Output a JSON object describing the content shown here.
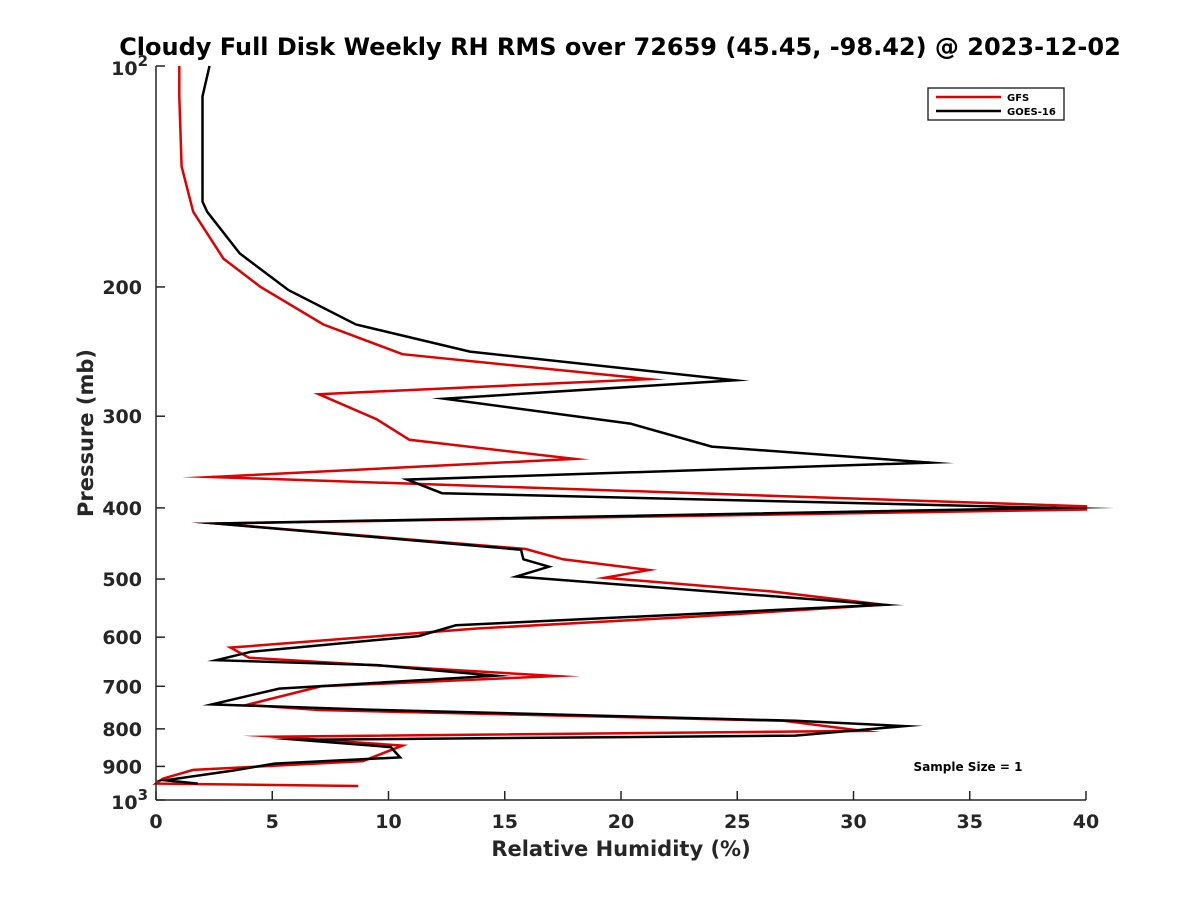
{
  "chart_data": {
    "type": "line",
    "title": "Cloudy Full Disk Weekly RH RMS over 72659 (45.45, -98.42) @ 2023-12-02",
    "xlabel": "Relative Humidity (%)",
    "ylabel": "Pressure (mb)",
    "xlim": [
      0,
      40
    ],
    "ylim": [
      100,
      1000
    ],
    "y_scale": "log",
    "y_reversed": true,
    "grid": false,
    "legend_placement": "top-right",
    "annotation": "Sample Size = 1",
    "x_ticks": [
      0,
      5,
      10,
      15,
      20,
      25,
      30,
      35,
      40
    ],
    "x_tick_labels": [
      "0",
      "5",
      "10",
      "15",
      "20",
      "25",
      "30",
      "35",
      "40"
    ],
    "y_ticks": [
      {
        "value": 100,
        "base": "10",
        "exp": "2"
      },
      {
        "value": 200,
        "label": "200"
      },
      {
        "value": 300,
        "label": "300"
      },
      {
        "value": 400,
        "label": "400"
      },
      {
        "value": 500,
        "label": "500"
      },
      {
        "value": 600,
        "label": "600"
      },
      {
        "value": 700,
        "label": "700"
      },
      {
        "value": 800,
        "label": "800"
      },
      {
        "value": 900,
        "label": "900"
      },
      {
        "value": 1000,
        "base": "10",
        "exp": "3"
      }
    ],
    "series": [
      {
        "name": "GFS",
        "color": "#e00000",
        "x": [
          1.0,
          1.0,
          1.1,
          1.6,
          2.9,
          4.5,
          7.2,
          10.6,
          21.2,
          7.0,
          9.5,
          10.9,
          18.0,
          2.4,
          40.0,
          40.0,
          2.6,
          15.9,
          17.5,
          21.2,
          19.3,
          26.5,
          31.3,
          23.0,
          13.8,
          3.2,
          4.0,
          11.0,
          17.2,
          7.1,
          3.9,
          7.0,
          27.0,
          30.4,
          5.1,
          10.6,
          8.9,
          1.6,
          0.3,
          0.0,
          8.7
        ],
        "y": [
          100,
          110,
          137,
          158,
          183,
          200,
          225,
          247,
          267,
          280,
          303,
          323,
          343,
          363,
          398,
          402,
          420,
          455,
          470,
          486,
          498,
          520,
          542,
          563,
          584,
          620,
          640,
          660,
          678,
          700,
          742,
          754,
          780,
          805,
          820,
          843,
          885,
          910,
          935,
          950,
          957
        ]
      },
      {
        "name": "GOES-16",
        "color": "#000000",
        "x": [
          2.3,
          2.0,
          2.0,
          2.0,
          2.2,
          3.6,
          5.7,
          8.6,
          13.5,
          24.9,
          12.4,
          20.4,
          23.9,
          33.3,
          10.8,
          12.3,
          38.7,
          2.6,
          15.7,
          15.8,
          16.9,
          15.5,
          25.6,
          31.3,
          12.9,
          11.3,
          4.1,
          2.6,
          9.5,
          14.6,
          5.3,
          2.4,
          9.1,
          27.5,
          32.2,
          27.5,
          6.1,
          10.1,
          10.5,
          5.1,
          3.3,
          0.4,
          1.8
        ],
        "y": [
          100,
          110,
          132,
          153,
          158,
          180,
          202,
          225,
          245,
          268,
          284,
          307,
          330,
          347,
          366,
          382,
          400,
          420,
          456,
          470,
          481,
          496,
          525,
          542,
          578,
          598,
          628,
          645,
          655,
          677,
          705,
          741,
          753,
          780,
          793,
          817,
          828,
          847,
          875,
          892,
          912,
          940,
          950
        ]
      }
    ]
  }
}
